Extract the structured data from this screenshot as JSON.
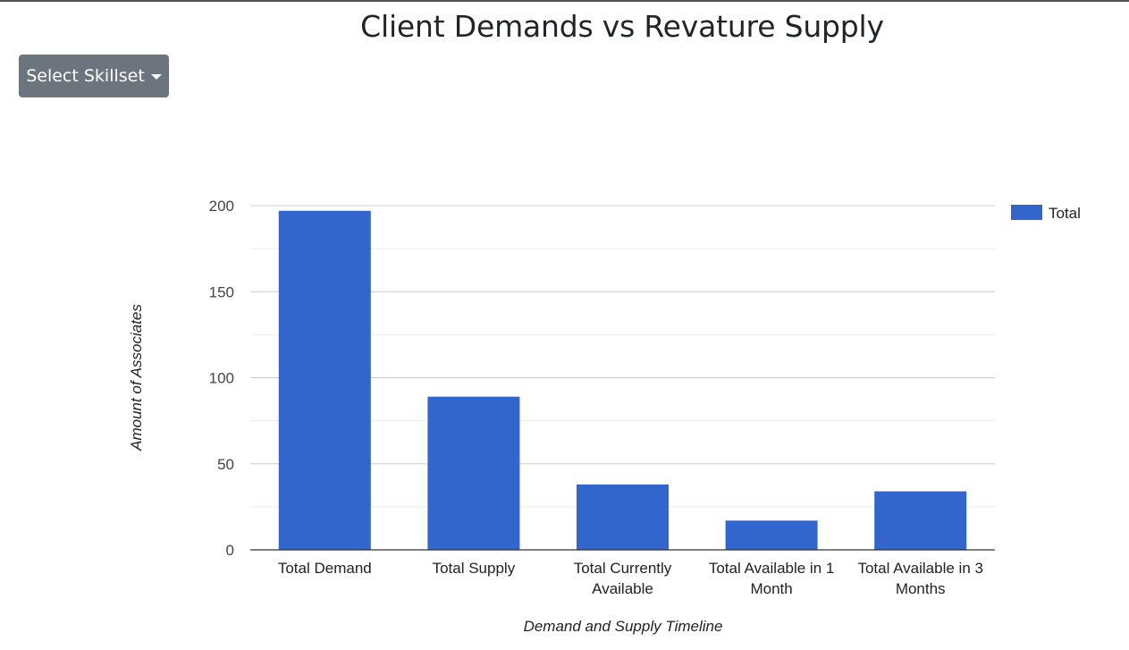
{
  "page": {
    "title": "Client Demands vs Revature Supply"
  },
  "controls": {
    "skillset_button_label": "Select Skillset"
  },
  "chart_data": {
    "type": "bar",
    "categories": [
      [
        "Total Demand"
      ],
      [
        "Total Supply"
      ],
      [
        "Total Currently",
        "Available"
      ],
      [
        "Total Available in 1",
        "Month"
      ],
      [
        "Total Available in 3",
        "Months"
      ]
    ],
    "series": [
      {
        "name": "Total",
        "values": [
          197,
          89,
          38,
          17,
          34
        ],
        "color": "#3366cc"
      }
    ],
    "xlabel": "Demand and Supply Timeline",
    "ylabel": "Amount of Associates",
    "ylim": [
      0,
      200
    ],
    "yticks": [
      0,
      50,
      100,
      150,
      200
    ],
    "grid": true,
    "legend": "right"
  }
}
